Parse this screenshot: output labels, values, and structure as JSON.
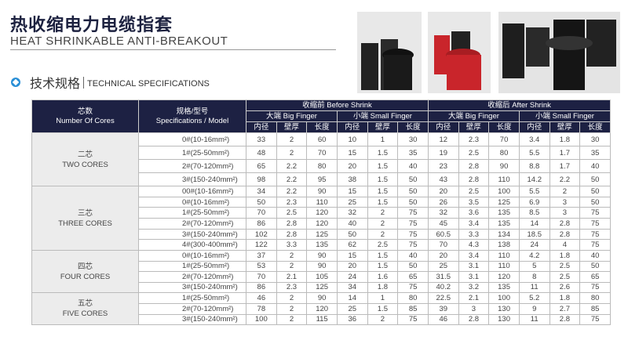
{
  "header": {
    "title_cn": "热收缩电力电缆指套",
    "title_en": "HEAT SHRINKABLE ANTI-BREAKOUT"
  },
  "section": {
    "title_cn": "技术规格",
    "title_en": "TECHNICAL SPECIFICATIONS"
  },
  "colors": {
    "header_bg": "#1d2143",
    "accent": "#2a8fd6"
  },
  "table": {
    "col_cores": {
      "cn": "芯数",
      "en": "Number Of Cores"
    },
    "col_spec": {
      "cn": "规格/型号",
      "en": "Specifications / Model"
    },
    "before": "收缩前 Before Shrink",
    "after": "收缩后 After Shrink",
    "big": "大端 Big Finger",
    "small": "小端 Small Finger",
    "sub": [
      "内径",
      "壁厚",
      "长度"
    ],
    "groups": [
      {
        "cn": "二芯",
        "en": "TWO CORES",
        "rows": [
          [
            "0#(10-16mm²)",
            "33",
            "2",
            "60",
            "10",
            "1",
            "30",
            "12",
            "2.3",
            "70",
            "3.4",
            "1.8",
            "30"
          ],
          [
            "1#(25-50mm²)",
            "48",
            "2",
            "70",
            "15",
            "1.5",
            "35",
            "19",
            "2.5",
            "80",
            "5.5",
            "1.7",
            "35"
          ],
          [
            "2#(70-120mm²)",
            "65",
            "2.2",
            "80",
            "20",
            "1.5",
            "40",
            "23",
            "2.8",
            "90",
            "8.8",
            "1.7",
            "40"
          ],
          [
            "3#(150-240mm²)",
            "98",
            "2.2",
            "95",
            "38",
            "1.5",
            "50",
            "43",
            "2.8",
            "110",
            "14.2",
            "2.2",
            "50"
          ]
        ]
      },
      {
        "cn": "三芯",
        "en": "THREE CORES",
        "rows": [
          [
            "00#(10-16mm²)",
            "34",
            "2.2",
            "90",
            "15",
            "1.5",
            "50",
            "20",
            "2.5",
            "100",
            "5.5",
            "2",
            "50"
          ],
          [
            "0#(10-16mm²)",
            "50",
            "2.3",
            "110",
            "25",
            "1.5",
            "50",
            "26",
            "3.5",
            "125",
            "6.9",
            "3",
            "50"
          ],
          [
            "1#(25-50mm²)",
            "70",
            "2.5",
            "120",
            "32",
            "2",
            "75",
            "32",
            "3.6",
            "135",
            "8.5",
            "3",
            "75"
          ],
          [
            "2#(70-120mm²)",
            "86",
            "2.8",
            "120",
            "40",
            "2",
            "75",
            "45",
            "3.4",
            "135",
            "14",
            "2.8",
            "75"
          ],
          [
            "3#(150-240mm²)",
            "102",
            "2.8",
            "125",
            "50",
            "2",
            "75",
            "60.5",
            "3.3",
            "134",
            "18.5",
            "2.8",
            "75"
          ],
          [
            "4#(300-400mm²)",
            "122",
            "3.3",
            "135",
            "62",
            "2.5",
            "75",
            "70",
            "4.3",
            "138",
            "24",
            "4",
            "75"
          ]
        ]
      },
      {
        "cn": "四芯",
        "en": "FOUR CORES",
        "rows": [
          [
            "0#(10-16mm²)",
            "37",
            "2",
            "90",
            "15",
            "1.5",
            "40",
            "20",
            "3.4",
            "110",
            "4.2",
            "1.8",
            "40"
          ],
          [
            "1#(25-50mm²)",
            "53",
            "2",
            "90",
            "20",
            "1.5",
            "50",
            "25",
            "3.1",
            "110",
            "5",
            "2.5",
            "50"
          ],
          [
            "2#(70-120mm²)",
            "70",
            "2.1",
            "105",
            "24",
            "1.6",
            "65",
            "31.5",
            "3.1",
            "120",
            "8",
            "2.5",
            "65"
          ],
          [
            "3#(150-240mm²)",
            "86",
            "2.3",
            "125",
            "34",
            "1.8",
            "75",
            "40.2",
            "3.2",
            "135",
            "11",
            "2.6",
            "75"
          ]
        ]
      },
      {
        "cn": "五芯",
        "en": "FIVE CORES",
        "rows": [
          [
            "1#(25-50mm²)",
            "46",
            "2",
            "90",
            "14",
            "1",
            "80",
            "22.5",
            "2.1",
            "100",
            "5.2",
            "1.8",
            "80"
          ],
          [
            "2#(70-120mm²)",
            "78",
            "2",
            "120",
            "25",
            "1.5",
            "85",
            "39",
            "3",
            "130",
            "9",
            "2.7",
            "85"
          ],
          [
            "3#(150-240mm²)",
            "100",
            "2",
            "115",
            "36",
            "2",
            "75",
            "46",
            "2.8",
            "130",
            "11",
            "2.8",
            "75"
          ]
        ]
      }
    ]
  }
}
